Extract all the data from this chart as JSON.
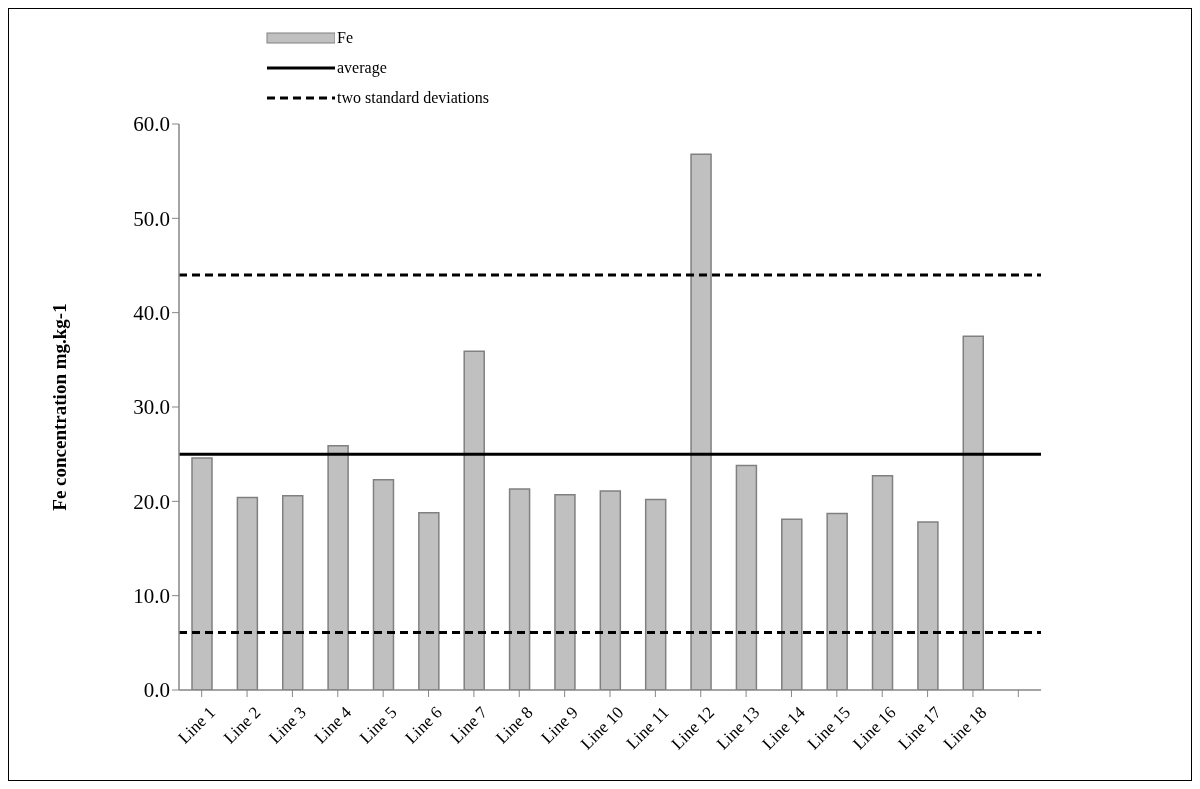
{
  "chart_data": {
    "type": "bar",
    "ylabel": "Fe concentration mg.kg-1",
    "categories": [
      "Line 1",
      "Line 2",
      "Line 3",
      "Line 4",
      "Line 5",
      "Line 6",
      "Line 7",
      "Line 8",
      "Line 9",
      "Line 10",
      "Line 11",
      "Line 12",
      "Line 13",
      "Line 14",
      "Line 15",
      "Line 16",
      "Line 17",
      "Line 18",
      null
    ],
    "series": [
      {
        "name": "Fe",
        "color": "#c0c0c0",
        "values": [
          24.6,
          20.4,
          20.6,
          25.9,
          22.3,
          18.8,
          35.9,
          21.3,
          20.7,
          21.1,
          20.2,
          56.8,
          23.8,
          18.1,
          18.7,
          22.7,
          17.8,
          37.5,
          null
        ]
      }
    ],
    "ylim": [
      0,
      60
    ],
    "yticks": [
      {
        "value": 0,
        "label": "0.0"
      },
      {
        "value": 10,
        "label": "10.0"
      },
      {
        "value": 20,
        "label": "20.0"
      },
      {
        "value": 30,
        "label": "30.0"
      },
      {
        "value": 40,
        "label": "40.0"
      },
      {
        "value": 50,
        "label": "50.0"
      },
      {
        "value": 60,
        "label": "60.0"
      }
    ],
    "ref_lines": [
      {
        "axis": "y",
        "value": 25.0,
        "label": "average",
        "color": "#000000",
        "line_style": "solid"
      },
      {
        "axis": "y",
        "value": 44.0,
        "label": "two standard deviations",
        "color": "#000000",
        "line_style": "dashed"
      },
      {
        "axis": "y",
        "value": 6.1,
        "color": "#000000",
        "line_style": "dashed"
      }
    ],
    "grid": false,
    "legend": "top left"
  }
}
